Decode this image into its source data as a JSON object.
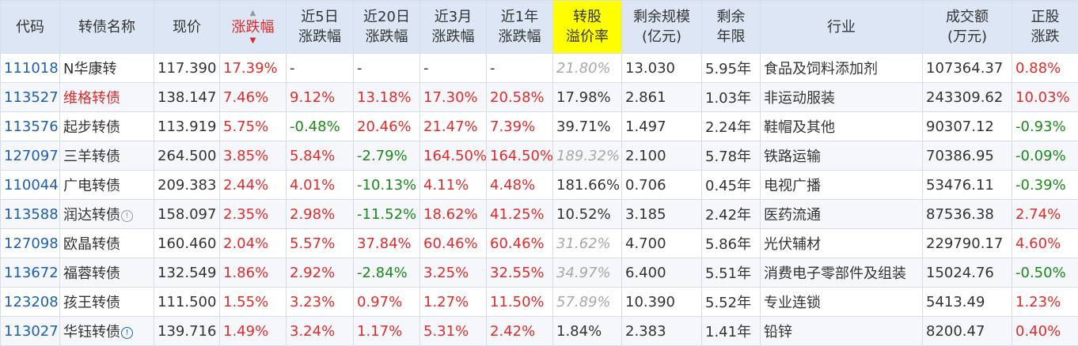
{
  "headers": [
    {
      "label": "代码"
    },
    {
      "label": "转债名称"
    },
    {
      "label": "现价"
    },
    {
      "label": "涨跌幅",
      "sorted": "desc"
    },
    {
      "line1": "近5日",
      "line2": "涨跌幅"
    },
    {
      "line1": "近20日",
      "line2": "涨跌幅"
    },
    {
      "line1": "近3月",
      "line2": "涨跌幅"
    },
    {
      "line1": "近1年",
      "line2": "涨跌幅"
    },
    {
      "line1": "转股",
      "line2": "溢价率",
      "highlight": true
    },
    {
      "line1": "剩余规模",
      "line2": "(亿元)"
    },
    {
      "line1": "剩余",
      "line2": "年限"
    },
    {
      "label": "行业"
    },
    {
      "line1": "成交额",
      "line2": "(万元)"
    },
    {
      "line1": "正股",
      "line2": "涨跌"
    }
  ],
  "rows": [
    {
      "code": "111018",
      "name": "N华康转",
      "price": "117.390",
      "change": "17.39%",
      "d5": "-",
      "d20": "-",
      "m3": "-",
      "y1": "-",
      "premium": "21.80%",
      "scale": "13.030",
      "years": "5.95年",
      "industry": "食品及饲料添加剂",
      "volume": "107364.37",
      "stock_change": "0.88%"
    },
    {
      "code": "113527",
      "name": "维格转债",
      "price": "138.147",
      "change": "7.46%",
      "d5": "9.12%",
      "d20": "13.18%",
      "m3": "17.30%",
      "y1": "20.58%",
      "premium": "17.98%",
      "scale": "2.861",
      "years": "1.03年",
      "industry": "非运动服装",
      "volume": "243309.62",
      "stock_change": "10.03%"
    },
    {
      "code": "113576",
      "name": "起步转债",
      "price": "113.919",
      "change": "5.75%",
      "d5": "-0.48%",
      "d20": "20.46%",
      "m3": "21.47%",
      "y1": "7.39%",
      "premium": "39.71%",
      "scale": "1.497",
      "years": "2.24年",
      "industry": "鞋帽及其他",
      "volume": "90307.12",
      "stock_change": "-0.93%"
    },
    {
      "code": "127097",
      "name": "三羊转债",
      "price": "264.500",
      "change": "3.85%",
      "d5": "5.84%",
      "d20": "-2.79%",
      "m3": "164.50%",
      "y1": "164.50%",
      "premium": "189.32%",
      "scale": "2.100",
      "years": "5.78年",
      "industry": "铁路运输",
      "volume": "70386.95",
      "stock_change": "-0.09%"
    },
    {
      "code": "110044",
      "name": "广电转债",
      "price": "209.383",
      "change": "2.44%",
      "d5": "4.01%",
      "d20": "-10.13%",
      "m3": "4.11%",
      "y1": "4.48%",
      "premium": "181.66%",
      "scale": "0.706",
      "years": "0.45年",
      "industry": "电视广播",
      "volume": "53476.11",
      "stock_change": "-0.39%"
    },
    {
      "code": "113588",
      "name": "润达转债",
      "info": "!",
      "price": "158.097",
      "change": "2.35%",
      "d5": "2.98%",
      "d20": "-11.52%",
      "m3": "18.62%",
      "y1": "41.25%",
      "premium": "10.52%",
      "scale": "3.185",
      "years": "2.42年",
      "industry": "医药流通",
      "volume": "87536.38",
      "stock_change": "2.74%"
    },
    {
      "code": "127098",
      "name": "欧晶转债",
      "price": "160.460",
      "change": "2.04%",
      "d5": "5.57%",
      "d20": "37.84%",
      "m3": "60.46%",
      "y1": "60.46%",
      "premium": "31.62%",
      "scale": "4.700",
      "years": "5.86年",
      "industry": "光伏辅材",
      "volume": "229790.17",
      "stock_change": "4.60%"
    },
    {
      "code": "113672",
      "name": "福蓉转债",
      "price": "132.549",
      "change": "1.86%",
      "d5": "2.92%",
      "d20": "-2.84%",
      "m3": "3.25%",
      "y1": "32.55%",
      "premium": "34.97%",
      "scale": "6.400",
      "years": "5.51年",
      "industry": "消费电子零部件及组装",
      "volume": "15024.76",
      "stock_change": "-0.50%"
    },
    {
      "code": "123208",
      "name": "孩王转债",
      "price": "111.500",
      "change": "1.55%",
      "d5": "3.23%",
      "d20": "0.97%",
      "m3": "1.27%",
      "y1": "11.50%",
      "premium": "57.89%",
      "scale": "10.390",
      "years": "5.52年",
      "industry": "专业连锁",
      "volume": "5413.49",
      "stock_change": "1.23%"
    },
    {
      "code": "113027",
      "name": "华钰转债",
      "info": "!",
      "price": "139.716",
      "change": "1.49%",
      "d5": "3.24%",
      "d20": "1.17%",
      "m3": "5.31%",
      "y1": "2.42%",
      "premium": "1.84%",
      "scale": "2.383",
      "years": "1.41年",
      "industry": "铅锌",
      "volume": "8200.47",
      "stock_change": "0.40%"
    }
  ],
  "colors": {
    "header_bg": "#dce6f4",
    "highlight": "#fefe00",
    "up": "#e02b2b",
    "down": "#1a8a1a",
    "code": "#1a5fb4",
    "muted_premium": "#a8a8a8"
  }
}
